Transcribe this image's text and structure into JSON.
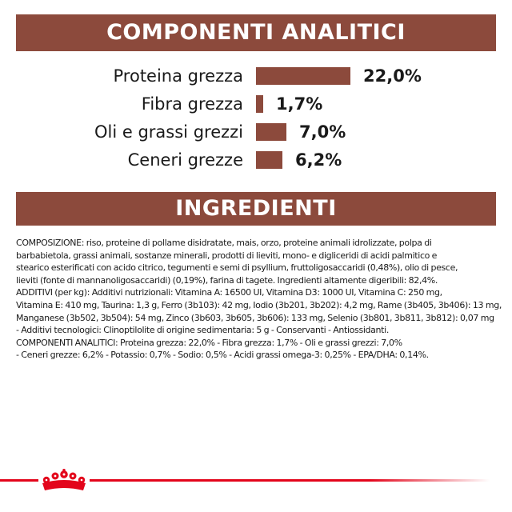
{
  "analytic_components": {
    "title": "COMPONENTI ANALITICI",
    "rows": [
      {
        "label": "Proteina grezza",
        "value": "22,0%",
        "percent": 22.0
      },
      {
        "label": "Fibra grezza",
        "value": "1,7%",
        "percent": 1.7
      },
      {
        "label": "Oli e grassi grezzi",
        "value": "7,0%",
        "percent": 7.0
      },
      {
        "label": "Ceneri grezze",
        "value": "6,2%",
        "percent": 6.2
      }
    ]
  },
  "ingredients": {
    "title": "INGREDIENTI",
    "lines": [
      "COMPOSIZIONE: riso, proteine di pollame disidratate, mais, orzo, proteine animali idrolizzate, polpa di",
      "barbabietola, grassi animali, sostanze minerali, prodotti di lieviti, mono- e digliceridi di acidi palmitico e",
      "stearico esterificati con acido citrico, tegumenti e semi di psyllium, fruttoligosaccaridi (0,48%), olio di pesce,",
      "lieviti (fonte di mannanoligosaccaridi) (0,19%), farina di tagete. Ingredienti altamente digeribili: 82,4%.",
      "ADDITIVI (per kg): Additivi nutrizionali: Vitamina A: 16500 UI, Vitamina D3: 1000 UI, Vitamina C: 250 mg,",
      "Vitamina E: 410 mg, Taurina: 1,3 g, Ferro (3b103): 42 mg, Iodio (3b201, 3b202): 4,2 mg, Rame (3b405, 3b406): 13 mg,",
      "Manganese (3b502, 3b504): 54 mg, Zinco (3b603, 3b605, 3b606): 133 mg, Selenio (3b801, 3b811, 3b812): 0,07 mg",
      "- Additivi tecnologici: Clinoptilolite di origine sedimentaria: 5 g - Conservanti - Antiossidanti.",
      "COMPONENTI ANALITICI: Proteina grezza: 22,0% - Fibra grezza: 1,7% - Oli e grassi grezzi: 7,0%",
      "- Ceneri grezze: 6,2% - Potassio: 0,7% - Sodio: 0,5% - Acidi grassi omega-3: 0,25% - EPA/DHA: 0,14%."
    ]
  },
  "colors": {
    "banner": "#8c4a3c",
    "bar": "#8c4a3c",
    "brand_red": "#e3051b"
  },
  "footer": {
    "logo_icon": "crown-icon"
  }
}
